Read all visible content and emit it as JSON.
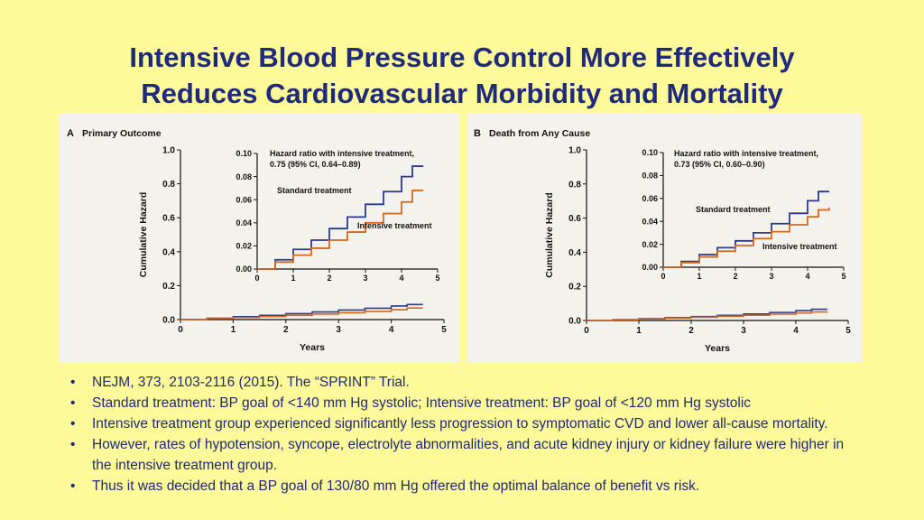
{
  "title": {
    "line1": "Intensive Blood Pressure Control More Effectively",
    "line2": "Reduces Cardiovascular Morbidity and Mortality"
  },
  "colors": {
    "background": "#FFFA99",
    "title": "#1F2A7A",
    "standard": "#2B3A8C",
    "intensive": "#D2691E"
  },
  "chart_data": [
    {
      "type": "line",
      "panel_label": "A",
      "title": "Primary Outcome",
      "xlabel": "Years",
      "ylabel": "Cumulative Hazard",
      "xlim": [
        0,
        5
      ],
      "ylim": [
        0,
        1.0
      ],
      "x_ticks": [
        "0",
        "1",
        "2",
        "3",
        "4",
        "5"
      ],
      "y_ticks": [
        "0.0",
        "0.2",
        "0.4",
        "0.6",
        "0.8",
        "1.0"
      ],
      "series": [
        {
          "name": "Standard treatment",
          "x": [
            0,
            0.5,
            1,
            1.5,
            2,
            2.5,
            3,
            3.5,
            4,
            4.3,
            4.6
          ],
          "values": [
            0,
            0.008,
            0.017,
            0.025,
            0.035,
            0.045,
            0.056,
            0.067,
            0.08,
            0.089,
            0.089
          ]
        },
        {
          "name": "Intensive treatment",
          "x": [
            0,
            0.5,
            1,
            1.5,
            2,
            2.5,
            3,
            3.5,
            4,
            4.3,
            4.6
          ],
          "values": [
            0,
            0.006,
            0.012,
            0.018,
            0.025,
            0.032,
            0.04,
            0.048,
            0.058,
            0.068,
            0.068
          ]
        }
      ],
      "inset": {
        "xlim": [
          0,
          5
        ],
        "ylim": [
          0,
          0.1
        ],
        "x_ticks": [
          "0",
          "1",
          "2",
          "3",
          "4",
          "5"
        ],
        "y_ticks": [
          "0.00",
          "0.02",
          "0.04",
          "0.06",
          "0.08",
          "0.10"
        ],
        "annotation_line1": "Hazard ratio with intensive treatment,",
        "annotation_line2": "0.75 (95% CI, 0.64–0.89)",
        "standard_label": "Standard treatment",
        "intensive_label": "Intensive treatment"
      }
    },
    {
      "type": "line",
      "panel_label": "B",
      "title": "Death from Any Cause",
      "xlabel": "Years",
      "ylabel": "Cumulative Hazard",
      "xlim": [
        0,
        5
      ],
      "ylim": [
        0,
        1.0
      ],
      "x_ticks": [
        "0",
        "1",
        "2",
        "3",
        "4",
        "5"
      ],
      "y_ticks": [
        "0.0",
        "0.2",
        "0.4",
        "0.6",
        "0.8",
        "1.0"
      ],
      "series": [
        {
          "name": "Standard treatment",
          "x": [
            0,
            0.5,
            1,
            1.5,
            2,
            2.5,
            3,
            3.5,
            4,
            4.3,
            4.6
          ],
          "values": [
            0,
            0.005,
            0.011,
            0.017,
            0.023,
            0.03,
            0.038,
            0.047,
            0.058,
            0.066,
            0.066
          ]
        },
        {
          "name": "Intensive treatment",
          "x": [
            0,
            0.5,
            1,
            1.5,
            2,
            2.5,
            3,
            3.5,
            4,
            4.3,
            4.6
          ],
          "values": [
            0,
            0.004,
            0.009,
            0.014,
            0.019,
            0.025,
            0.031,
            0.037,
            0.044,
            0.05,
            0.052
          ]
        }
      ],
      "inset": {
        "xlim": [
          0,
          5
        ],
        "ylim": [
          0,
          0.1
        ],
        "x_ticks": [
          "0",
          "1",
          "2",
          "3",
          "4",
          "5"
        ],
        "y_ticks": [
          "0.00",
          "0.02",
          "0.04",
          "0.06",
          "0.08",
          "0.10"
        ],
        "annotation_line1": "Hazard ratio with intensive treatment,",
        "annotation_line2": "0.73 (95% CI, 0.60–0.90)",
        "standard_label": "Standard treatment",
        "intensive_label": "Intensive treatment"
      }
    }
  ],
  "bullets": [
    "NEJM, 373, 2103-2116 (2015).  The “SPRINT” Trial.",
    "Standard treatment: BP goal of <140 mm Hg systolic; Intensive treatment: BP goal of <120 mm Hg systolic",
    "Intensive treatment group experienced significantly less progression to symptomatic CVD and lower all-cause mortality.",
    "However, rates of hypotension, syncope, electrolyte abnormalities, and acute kidney injury or kidney failure were higher in the intensive treatment group.",
    "Thus it was decided that a BP goal of 130/80 mm Hg offered the optimal balance of benefit vs risk."
  ]
}
